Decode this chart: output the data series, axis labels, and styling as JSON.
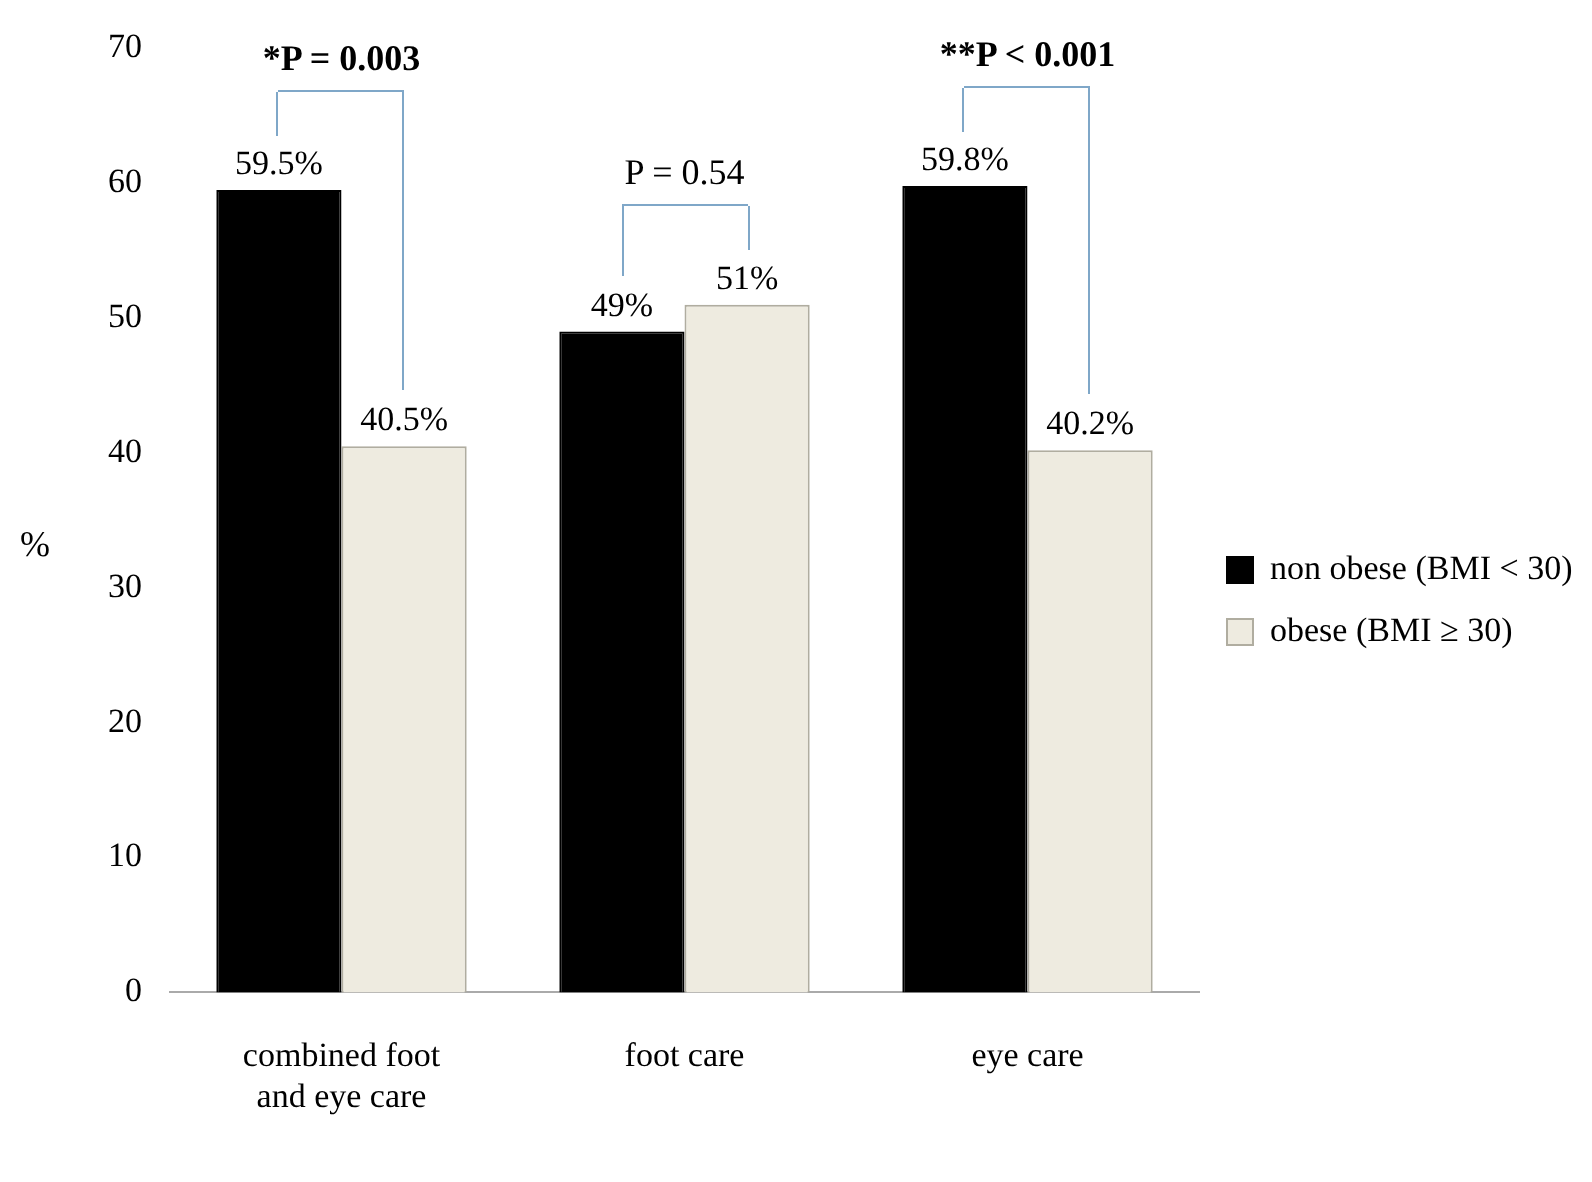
{
  "chart_data": {
    "type": "bar",
    "ylabel": "%",
    "categories": [
      "combined foot and eye care",
      "foot care",
      "eye care"
    ],
    "series": [
      {
        "name": "non obese (BMI < 30)",
        "color": "#000000",
        "values": [
          59.5,
          49,
          59.8
        ],
        "value_labels": [
          "59.5%",
          "49%",
          "59.8%"
        ]
      },
      {
        "name": "obese (BMI ≥ 30)",
        "color": "#eeebe0",
        "values": [
          40.5,
          51,
          40.2
        ],
        "value_labels": [
          "40.5%",
          "51%",
          "40.2%"
        ]
      }
    ],
    "ylim": [
      0,
      70
    ],
    "yticks": [
      0,
      10,
      20,
      30,
      40,
      50,
      60,
      70
    ],
    "grid": false,
    "legend": "right",
    "annotations": [
      "*P = 0.003",
      "P = 0.54",
      "**P < 0.001"
    ]
  }
}
